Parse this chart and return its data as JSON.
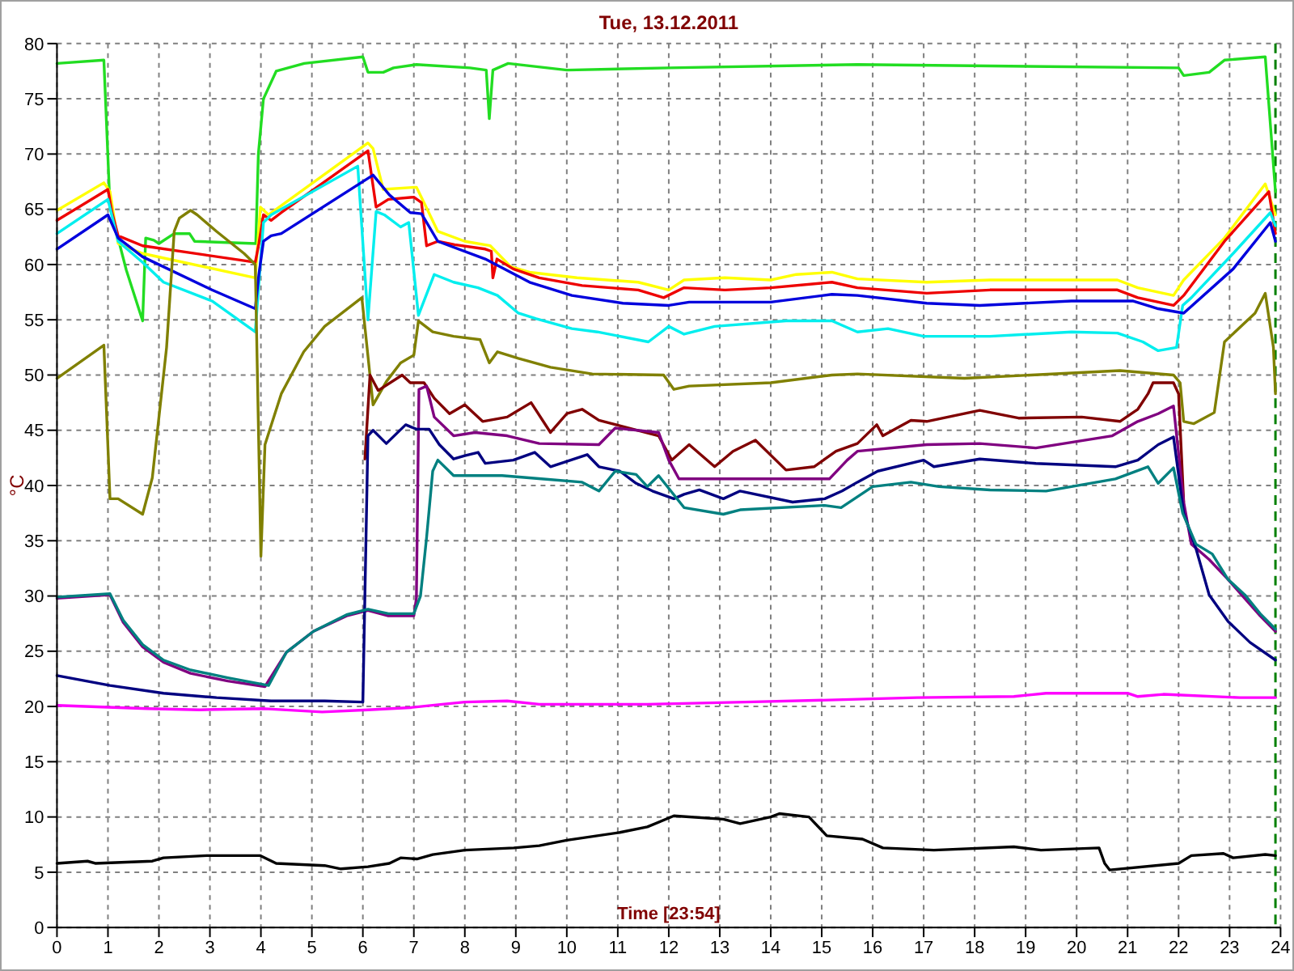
{
  "chart_data": {
    "type": "line",
    "title": "Tue, 13.12.2011",
    "xlabel": "Time [23:54]",
    "ylabel": "°C",
    "xlim": [
      0,
      24
    ],
    "ylim": [
      0,
      80
    ],
    "xticks": [
      0,
      1,
      2,
      3,
      4,
      5,
      6,
      7,
      8,
      9,
      10,
      11,
      12,
      13,
      14,
      15,
      16,
      17,
      18,
      19,
      20,
      21,
      22,
      23,
      24
    ],
    "yticks": [
      0,
      5,
      10,
      15,
      20,
      25,
      30,
      35,
      40,
      45,
      50,
      55,
      60,
      65,
      70,
      75,
      80
    ],
    "grid": true,
    "ref_lines": [
      {
        "axis": "x",
        "value": 23.9,
        "color": "#008000",
        "line_style": "dashed"
      }
    ],
    "series": [
      {
        "color": "#22dd22",
        "x": [
          0,
          0.92,
          1.04,
          1.36,
          1.68,
          1.74,
          1.9,
          2.0,
          2.3,
          2.6,
          2.7,
          3.9,
          3.95,
          4.05,
          4.3,
          4.85,
          6.0,
          6.1,
          6.4,
          6.6,
          7.05,
          8.1,
          8.42,
          8.48,
          8.55,
          8.85,
          10,
          12,
          15.7,
          22,
          22.1,
          22.6,
          22.9,
          23.7,
          23.9
        ],
        "values": [
          78.2,
          78.5,
          65.2,
          59.5,
          54.9,
          62.4,
          62.2,
          61.9,
          62.8,
          62.8,
          62.1,
          61.9,
          70,
          75,
          77.5,
          78.2,
          78.8,
          77.4,
          77.4,
          77.8,
          78.1,
          77.8,
          77.6,
          73.2,
          77.6,
          78.2,
          77.6,
          77.8,
          78.1,
          77.8,
          77.1,
          77.4,
          78.5,
          78.8,
          66.6
        ]
      },
      {
        "color": "#ffff00",
        "x": [
          0,
          0.92,
          1.04,
          1.2,
          1.68,
          3.89,
          3.99,
          4.15,
          6.1,
          6.2,
          6.4,
          7.05,
          7.2,
          7.47,
          8.0,
          8.5,
          8.9,
          9.27,
          10.2,
          11.4,
          12,
          12.3,
          13.1,
          14,
          14.5,
          15.2,
          15.7,
          17.06,
          18.3,
          20.8,
          21.2,
          21.9,
          22.1,
          22.9,
          23.7,
          23.9
        ],
        "values": [
          64.9,
          67.4,
          66.6,
          61.9,
          61,
          58.8,
          65.2,
          64.5,
          71,
          70.5,
          66.8,
          67,
          65.6,
          63,
          62.1,
          61.7,
          59.8,
          59.3,
          58.8,
          58.4,
          57.7,
          58.6,
          58.8,
          58.6,
          59.1,
          59.3,
          58.7,
          58.4,
          58.6,
          58.6,
          57.9,
          57.2,
          58.6,
          62.4,
          67.3,
          64.5
        ]
      },
      {
        "color": "#ee0000",
        "x": [
          0,
          1,
          1.08,
          1.2,
          1.68,
          3.89,
          3.96,
          4.05,
          4.2,
          4.4,
          6.1,
          6.26,
          6.5,
          7.0,
          7.15,
          7.25,
          7.47,
          7.8,
          8.4,
          8.52,
          8.55,
          8.63,
          8.95,
          9.46,
          10.3,
          11.4,
          11.9,
          12.3,
          13.1,
          14,
          15.2,
          15.7,
          17.06,
          18.3,
          20.8,
          21.2,
          21.9,
          22.1,
          22.9,
          23.77,
          23.9
        ],
        "values": [
          64,
          66.8,
          64.7,
          62.6,
          61.7,
          60.2,
          61.9,
          64.5,
          64,
          64.7,
          70.3,
          65.2,
          65.9,
          66.1,
          65.6,
          61.7,
          62.1,
          61.8,
          61.4,
          61.2,
          58.8,
          60.5,
          59.6,
          58.8,
          58.1,
          57.7,
          57,
          57.9,
          57.7,
          57.9,
          58.4,
          57.9,
          57.4,
          57.7,
          57.7,
          57,
          56.3,
          57.2,
          62.1,
          66.6,
          62.8
        ]
      },
      {
        "color": "#00eeee",
        "x": [
          0,
          1,
          1.2,
          1.68,
          2.09,
          3.04,
          3.89,
          4.05,
          4.2,
          5.9,
          6.1,
          6.26,
          6.42,
          6.74,
          6.9,
          7.09,
          7.4,
          7.78,
          8.26,
          8.64,
          9.05,
          9.4,
          10.1,
          10.6,
          11.6,
          12,
          12.3,
          12.9,
          14.3,
          15.2,
          15.7,
          16.3,
          17,
          18.3,
          19.9,
          20.8,
          21.3,
          21.6,
          21.96,
          22.08,
          22.25,
          23.07,
          23.8,
          23.9
        ],
        "values": [
          62.8,
          65.9,
          62.1,
          60.2,
          58.4,
          56.7,
          53.9,
          63.8,
          64.5,
          68.9,
          55,
          64.8,
          64.5,
          63.4,
          63.8,
          55.4,
          59.1,
          58.4,
          57.9,
          57.2,
          55.6,
          55.1,
          54.2,
          53.9,
          53,
          54.4,
          53.7,
          54.4,
          54.9,
          54.9,
          53.9,
          54.2,
          53.5,
          53.5,
          53.9,
          53.8,
          53,
          52.2,
          52.5,
          56.3,
          57,
          61,
          64.7,
          63.5
        ]
      },
      {
        "color": "#0000dd",
        "x": [
          0,
          1,
          1.2,
          1.68,
          3.04,
          3.89,
          3.96,
          4.05,
          4.2,
          4.4,
          6.2,
          6.52,
          6.93,
          7.15,
          7.47,
          8.4,
          9.27,
          10.1,
          11.1,
          12,
          12.4,
          14,
          15.2,
          15.7,
          17.06,
          18.1,
          19.9,
          21.1,
          21.6,
          22.1,
          23.07,
          23.8,
          23.9
        ],
        "values": [
          61.4,
          64.5,
          62.4,
          60.7,
          57.7,
          56,
          59.1,
          62.1,
          62.6,
          62.8,
          68.1,
          66.3,
          64.7,
          64.6,
          62.1,
          60.5,
          58.4,
          57.2,
          56.5,
          56.3,
          56.6,
          56.6,
          57.3,
          57.2,
          56.5,
          56.3,
          56.7,
          56.7,
          56,
          55.6,
          59.6,
          63.8,
          62.1
        ]
      },
      {
        "color": "#808000",
        "x": [
          0,
          0.92,
          1.04,
          1.2,
          1.68,
          1.87,
          2.15,
          2.3,
          2.4,
          2.62,
          2.75,
          3.13,
          3.67,
          3.89,
          4.0,
          4.08,
          4.4,
          4.84,
          5.25,
          5.98,
          6.2,
          6.46,
          6.74,
          7.0,
          7.09,
          7.37,
          7.78,
          8.3,
          8.48,
          8.64,
          9.05,
          9.68,
          10.5,
          11.9,
          12.1,
          12.4,
          14,
          15.2,
          15.7,
          17.8,
          20.85,
          21.9,
          22.03,
          22.1,
          22.3,
          22.7,
          22.9,
          23.5,
          23.7,
          23.86,
          23.9
        ],
        "values": [
          49.7,
          52.7,
          38.8,
          38.8,
          37.4,
          40.7,
          52.5,
          63,
          64.2,
          64.9,
          64.5,
          63,
          61,
          60,
          33.6,
          43.7,
          48.3,
          52.1,
          54.4,
          57,
          47.3,
          49.4,
          51.1,
          51.8,
          54.9,
          53.9,
          53.5,
          53.2,
          51.1,
          52.1,
          51.5,
          50.7,
          50.1,
          50,
          48.7,
          49,
          49.3,
          50,
          50.1,
          49.7,
          50.4,
          50,
          49.3,
          45.8,
          45.6,
          46.6,
          53,
          55.6,
          57.4,
          52.5,
          48.3
        ]
      },
      {
        "color": "#800000",
        "x": [
          6.04,
          6.14,
          6.3,
          6.77,
          6.93,
          7.2,
          7.4,
          7.7,
          8.0,
          8.35,
          8.83,
          9.3,
          9.68,
          10,
          10.3,
          10.63,
          11.8,
          12.06,
          12.4,
          12.9,
          13.26,
          13.7,
          14.3,
          14.85,
          15.28,
          15.7,
          16.08,
          16.2,
          16.75,
          17.06,
          18.1,
          18.86,
          20.1,
          20.85,
          21.2,
          21.4,
          21.5,
          21.9,
          22.0,
          22.1
        ],
        "values": [
          42.4,
          50,
          48.6,
          50,
          49.3,
          49.3,
          47.9,
          46.5,
          47.3,
          45.8,
          46.2,
          47.5,
          44.8,
          46.5,
          46.9,
          45.9,
          44.5,
          42.3,
          43.7,
          41.7,
          43.1,
          44.1,
          41.4,
          41.7,
          43.1,
          43.8,
          45.5,
          44.5,
          45.9,
          45.8,
          46.8,
          46.1,
          46.2,
          45.8,
          46.9,
          48.3,
          49.3,
          49.3,
          48.3,
          38.5
        ]
      },
      {
        "color": "#800080",
        "x": [
          0,
          1.04,
          1.3,
          1.68,
          2.09,
          2.62,
          3.35,
          4.08,
          4.5,
          5.03,
          5.68,
          6.1,
          6.5,
          7.0,
          7.05,
          7.1,
          7.25,
          7.4,
          7.78,
          8.2,
          8.83,
          9.46,
          10.63,
          10.95,
          11.8,
          12.0,
          12.2,
          13.07,
          15.15,
          15.5,
          15.7,
          17.06,
          18.1,
          19.2,
          20.7,
          21.2,
          21.6,
          21.9,
          22.1,
          22.25,
          22.6,
          22.97,
          23.6,
          23.9
        ],
        "values": [
          29.8,
          30.1,
          27.6,
          25.4,
          24,
          23,
          22.3,
          21.8,
          24.9,
          26.8,
          28.2,
          28.7,
          28.2,
          28.2,
          29.8,
          48.7,
          49,
          46.2,
          44.5,
          44.8,
          44.5,
          43.8,
          43.7,
          45.2,
          44.8,
          42.3,
          40.6,
          40.6,
          40.6,
          42.3,
          43.1,
          43.7,
          43.8,
          43.4,
          44.5,
          45.8,
          46.5,
          47.2,
          38.5,
          34.7,
          33.3,
          31.5,
          28.2,
          26.8
        ]
      },
      {
        "color": "#000080",
        "x": [
          0,
          1.04,
          2.09,
          3.13,
          4.2,
          5.25,
          6.0,
          6.1,
          6.2,
          6.46,
          6.84,
          7.05,
          7.3,
          7.5,
          7.78,
          8.0,
          8.26,
          8.4,
          8.95,
          9.37,
          9.68,
          10.4,
          10.63,
          11.04,
          11.36,
          11.68,
          12.1,
          12.3,
          12.6,
          13.07,
          13.4,
          14.43,
          15.06,
          15.4,
          15.7,
          16.1,
          17,
          17.2,
          18.1,
          19.2,
          20.76,
          21.2,
          21.6,
          21.9,
          22.1,
          22.34,
          22.6,
          22.97,
          23.4,
          23.9
        ],
        "values": [
          22.8,
          21.9,
          21.2,
          20.8,
          20.5,
          20.5,
          20.4,
          44.5,
          45,
          43.8,
          45.5,
          45.1,
          45.1,
          43.7,
          42.4,
          42.7,
          43,
          42,
          42.3,
          43,
          41.7,
          42.8,
          41.7,
          41.3,
          40.2,
          39.5,
          38.8,
          39.2,
          39.6,
          38.8,
          39.5,
          38.5,
          38.8,
          39.5,
          40.3,
          41.3,
          42.3,
          41.7,
          42.4,
          42,
          41.7,
          42.3,
          43.7,
          44.4,
          37.5,
          34.3,
          30.1,
          27.7,
          25.8,
          24.2
        ]
      },
      {
        "color": "#008080",
        "x": [
          0,
          1.04,
          1.3,
          1.68,
          2.09,
          2.62,
          3.35,
          4.15,
          4.5,
          5.03,
          5.68,
          6.1,
          6.5,
          7.0,
          7.13,
          7.25,
          7.37,
          7.47,
          7.78,
          8.73,
          9.5,
          10.3,
          10.63,
          10.95,
          11.36,
          11.58,
          11.8,
          12.3,
          13.07,
          13.4,
          15.06,
          15.38,
          16.0,
          16.75,
          17.3,
          18.3,
          19.4,
          20.76,
          21.4,
          21.6,
          21.9,
          22.08,
          22.34,
          22.66,
          22.97,
          23.3,
          23.6,
          23.9
        ],
        "values": [
          29.9,
          30.2,
          27.8,
          25.6,
          24.2,
          23.3,
          22.6,
          21.9,
          24.9,
          26.8,
          28.3,
          28.8,
          28.4,
          28.4,
          30,
          35.3,
          41.3,
          42.3,
          40.9,
          40.9,
          40.6,
          40.3,
          39.5,
          41.3,
          41,
          39.9,
          40.9,
          38,
          37.4,
          37.8,
          38.2,
          38,
          39.9,
          40.3,
          39.9,
          39.6,
          39.5,
          40.6,
          41.7,
          40.2,
          41.6,
          37.5,
          34.7,
          33.8,
          31.5,
          30.1,
          28.4,
          27
        ]
      },
      {
        "color": "#ff00ff",
        "x": [
          0,
          1.77,
          2.8,
          4.08,
          5.2,
          6.1,
          6.93,
          7.56,
          8,
          8.83,
          9.46,
          11.58,
          13.5,
          15.28,
          16.87,
          18.77,
          19.4,
          21,
          21.2,
          21.7,
          23.2,
          23.9
        ],
        "values": [
          20.1,
          19.8,
          19.7,
          19.8,
          19.5,
          19.7,
          19.9,
          20.2,
          20.4,
          20.5,
          20.2,
          20.2,
          20.4,
          20.6,
          20.8,
          20.9,
          21.2,
          21.2,
          20.9,
          21.1,
          20.8,
          20.8
        ]
      },
      {
        "color": "#000000",
        "x": [
          0,
          0.6,
          0.75,
          1.87,
          2.09,
          2.94,
          3.99,
          4.3,
          5.25,
          5.57,
          6.1,
          6.52,
          6.74,
          7.06,
          7.37,
          8,
          8.96,
          9.46,
          10,
          11.04,
          11.58,
          12.1,
          13.07,
          13.4,
          14,
          14.17,
          14.75,
          15.1,
          15.8,
          16.2,
          17.2,
          18.77,
          19.3,
          20.44,
          20.55,
          20.65,
          22,
          22.25,
          22.88,
          23.07,
          23.7,
          23.9
        ],
        "values": [
          5.8,
          6,
          5.8,
          6,
          6.3,
          6.5,
          6.5,
          5.8,
          5.6,
          5.3,
          5.5,
          5.8,
          6.3,
          6.2,
          6.6,
          7,
          7.2,
          7.4,
          7.9,
          8.6,
          9.1,
          10.1,
          9.8,
          9.4,
          10,
          10.3,
          10,
          8.3,
          8,
          7.2,
          7,
          7.3,
          7,
          7.2,
          5.8,
          5.2,
          5.8,
          6.5,
          6.7,
          6.3,
          6.6,
          6.5
        ]
      }
    ]
  }
}
